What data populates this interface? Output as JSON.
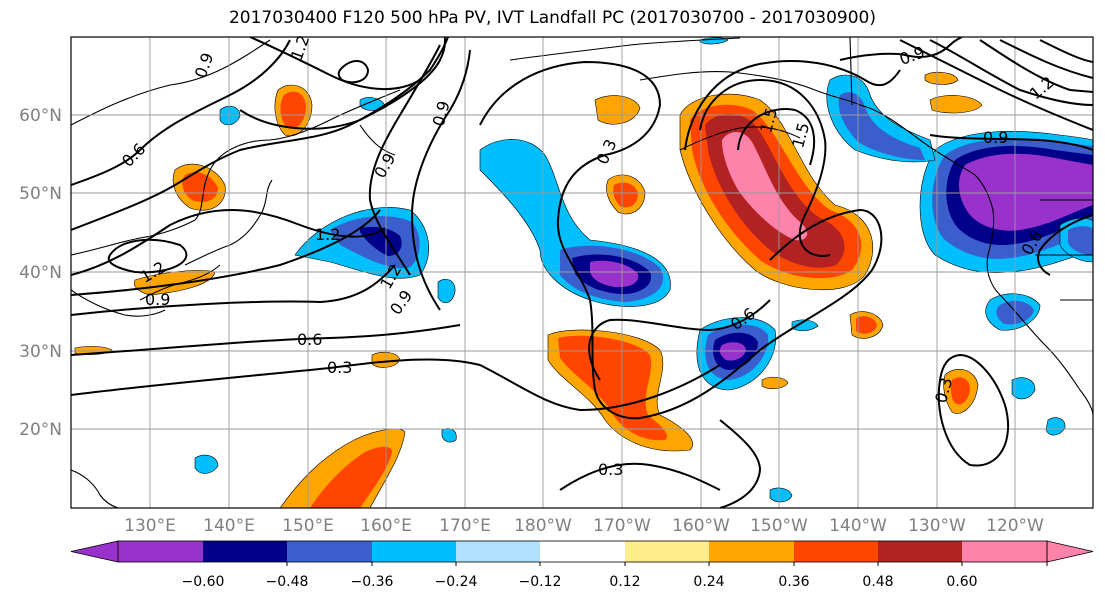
{
  "title": "2017030400 F120 500 hPa PV, IVT Landfall PC (2017030700 - 2017030900)",
  "lat_labels": [
    "60°N",
    "50°N",
    "40°N",
    "30°N",
    "20°N"
  ],
  "lon_labels": [
    "130°E",
    "140°E",
    "150°E",
    "160°E",
    "170°E",
    "180°W",
    "170°W",
    "160°W",
    "150°W",
    "140°W",
    "130°W",
    "120°W"
  ],
  "contour_labels": [
    "0.9",
    "1.2",
    "0.6",
    "0.9",
    "1.2",
    "0.9",
    "1.2",
    "0.6",
    "0.3",
    "0.3",
    "0.9",
    "1.2",
    "1.5",
    "0.6",
    "0.3",
    "0.3",
    "1.2",
    "0.9",
    "0.9",
    "1.5",
    "0.9",
    "0.6"
  ],
  "colorbar": {
    "colors": [
      "#9932cc",
      "#00008b",
      "#3a5fcd",
      "#00bfff",
      "#b0e2ff",
      "#ffffff",
      "#ffec8b",
      "#ffa500",
      "#ff4500",
      "#b22222",
      "#ff82ab"
    ],
    "tick_labels": [
      "−0.60",
      "−0.48",
      "−0.36",
      "−0.24",
      "−0.12",
      "0.12",
      "0.24",
      "0.36",
      "0.48",
      "0.60"
    ]
  }
}
